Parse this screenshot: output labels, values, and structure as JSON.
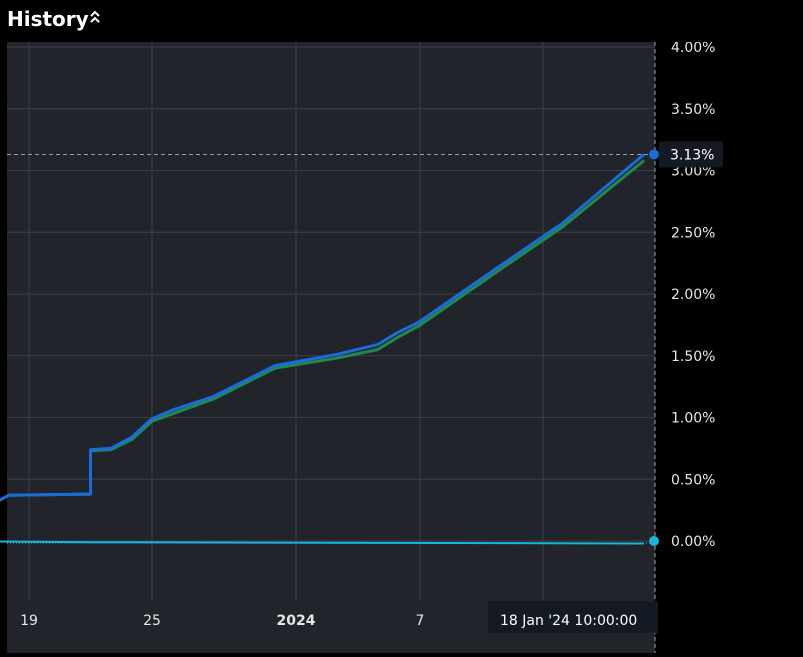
{
  "header": {
    "title": "History",
    "collapse_icon": "double-chevron-up-icon"
  },
  "colors": {
    "background": "#21252b",
    "grid": "#3a3f47",
    "series_main": "#1a6bdc",
    "series_under": "#1f8a4c",
    "series_flat": "#17b6d8",
    "label_bg": "#141a24"
  },
  "crosshair": {
    "value_label": "3.13%",
    "time_label": "18 Jan '24   10:00:00"
  },
  "chart_data": {
    "type": "line",
    "title": "",
    "xlabel": "",
    "ylabel": "",
    "x_ticks": [
      "19",
      "25",
      "2024",
      "7"
    ],
    "y_ticks": [
      "4.00%",
      "3.50%",
      "3.00%",
      "2.50%",
      "2.00%",
      "1.50%",
      "1.00%",
      "0.50%",
      "0.00%"
    ],
    "ylim": [
      -0.45,
      4.05
    ],
    "grid": true,
    "series": [
      {
        "color": "#1f8a4c",
        "x": [
          "2023-12-14",
          "2023-12-18",
          "2023-12-22",
          "2023-12-22",
          "2023-12-23",
          "2023-12-24",
          "2023-12-25",
          "2023-12-26",
          "2023-12-28",
          "2023-12-31",
          "2024-01-03",
          "2024-01-05",
          "2024-01-06",
          "2024-01-07",
          "2024-01-11",
          "2024-01-14",
          "2024-01-18"
        ],
        "values": [
          0.0,
          0.37,
          0.38,
          0.73,
          0.74,
          0.82,
          0.97,
          1.03,
          1.15,
          1.4,
          1.48,
          1.55,
          1.65,
          1.74,
          2.2,
          2.54,
          3.08
        ]
      },
      {
        "color": "#1a6bdc",
        "x": [
          "2023-12-14",
          "2023-12-18",
          "2023-12-22",
          "2023-12-22",
          "2023-12-23",
          "2023-12-24",
          "2023-12-25",
          "2023-12-26",
          "2023-12-28",
          "2023-12-31",
          "2024-01-03",
          "2024-01-05",
          "2024-01-06",
          "2024-01-07",
          "2024-01-11",
          "2024-01-14",
          "2024-01-18"
        ],
        "values": [
          0.0,
          0.37,
          0.38,
          0.74,
          0.75,
          0.84,
          0.99,
          1.06,
          1.17,
          1.42,
          1.51,
          1.59,
          1.69,
          1.77,
          2.23,
          2.57,
          3.13
        ]
      },
      {
        "color": "#17b6d8",
        "x": [
          "2023-12-14",
          "2023-12-22",
          "2024-01-18"
        ],
        "values": [
          0.0,
          -0.01,
          -0.02
        ]
      }
    ]
  }
}
